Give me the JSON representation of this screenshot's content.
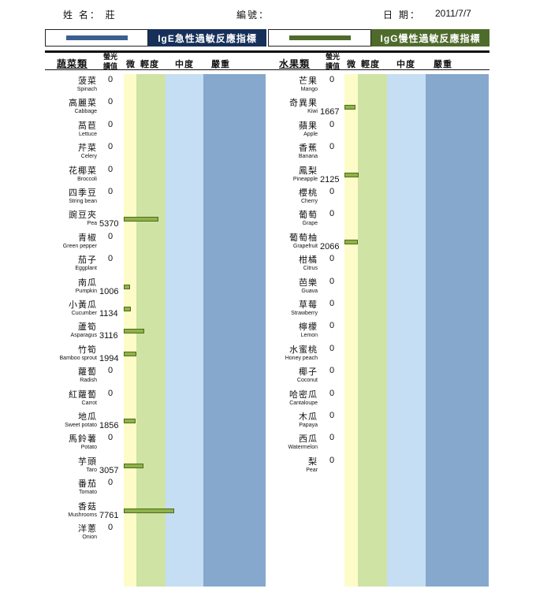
{
  "header": {
    "name_label": "姓 名：  莊",
    "id_label": "編號：",
    "date_label": "日 期：",
    "date_value": "2011/7/7"
  },
  "legend": {
    "ige_title": "IgE急性過敏反應指標",
    "igg_title": "IgG慢性過敏反應指標",
    "ige_color": "#3b5f91",
    "igg_color": "#4f6b2c"
  },
  "columns": {
    "value_header": "螢光\n讀值",
    "mild": "微",
    "light": "輕度",
    "moderate": "中度",
    "severe": "嚴重"
  },
  "chart_data": [
    {
      "type": "bar",
      "title": "蔬菜類",
      "categories": [
        {
          "zh": "菠菜",
          "en": "Spinach",
          "value": 0
        },
        {
          "zh": "高麗菜",
          "en": "Cabbage",
          "value": 0
        },
        {
          "zh": "萵苣",
          "en": "Lettuce",
          "value": 0
        },
        {
          "zh": "芹菜",
          "en": "Celery",
          "value": 0
        },
        {
          "zh": "花椰菜",
          "en": "Broccoli",
          "value": 0
        },
        {
          "zh": "四季豆",
          "en": "String bean",
          "value": 0
        },
        {
          "zh": "豌豆夾",
          "en": "Pea",
          "value": 5370
        },
        {
          "zh": "青椒",
          "en": "Green pepper",
          "value": 0
        },
        {
          "zh": "茄子",
          "en": "Eggplant",
          "value": 0
        },
        {
          "zh": "南瓜",
          "en": "Pumpkin",
          "value": 1006
        },
        {
          "zh": "小黃瓜",
          "en": "Cucumber",
          "value": 1134
        },
        {
          "zh": "蘆筍",
          "en": "Asparagus",
          "value": 3116
        },
        {
          "zh": "竹筍",
          "en": "Bamboo sprout",
          "value": 1994
        },
        {
          "zh": "蘿蔔",
          "en": "Radish",
          "value": 0
        },
        {
          "zh": "紅蘿蔔",
          "en": "Carrot",
          "value": 0
        },
        {
          "zh": "地瓜",
          "en": "Sweet potato",
          "value": 1856
        },
        {
          "zh": "馬鈴薯",
          "en": "Potato",
          "value": 0
        },
        {
          "zh": "芋頭",
          "en": "Taro",
          "value": 3057
        },
        {
          "zh": "番茄",
          "en": "Tomato",
          "value": 0
        },
        {
          "zh": "香菇",
          "en": "Mushrooms",
          "value": 7761
        },
        {
          "zh": "洋蔥",
          "en": "Onion",
          "value": 0
        }
      ]
    },
    {
      "type": "bar",
      "title": "水果類",
      "categories": [
        {
          "zh": "芒果",
          "en": "Mango",
          "value": 0
        },
        {
          "zh": "奇異果",
          "en": "Kiwi",
          "value": 1667
        },
        {
          "zh": "蘋果",
          "en": "Apple",
          "value": 0
        },
        {
          "zh": "香蕉",
          "en": "Banana",
          "value": 0
        },
        {
          "zh": "鳳梨",
          "en": "Pineapple",
          "value": 2125
        },
        {
          "zh": "櫻桃",
          "en": "Cherry",
          "value": 0
        },
        {
          "zh": "葡萄",
          "en": "Grape",
          "value": 0
        },
        {
          "zh": "葡萄柚",
          "en": "Grapefruit",
          "value": 2066
        },
        {
          "zh": "柑橘",
          "en": "Citrus",
          "value": 0
        },
        {
          "zh": "芭樂",
          "en": "Guava",
          "value": 0
        },
        {
          "zh": "草莓",
          "en": "Strawberry",
          "value": 0
        },
        {
          "zh": "檸檬",
          "en": "Lemon",
          "value": 0
        },
        {
          "zh": "水蜜桃",
          "en": "Honey peach",
          "value": 0
        },
        {
          "zh": "椰子",
          "en": "Coconut",
          "value": 0
        },
        {
          "zh": "哈密瓜",
          "en": "Cantaloupe",
          "value": 0
        },
        {
          "zh": "木瓜",
          "en": "Papaya",
          "value": 0
        },
        {
          "zh": "西瓜",
          "en": "Watermelon",
          "value": 0
        },
        {
          "zh": "梨",
          "en": "Pear",
          "value": 0
        }
      ]
    }
  ]
}
